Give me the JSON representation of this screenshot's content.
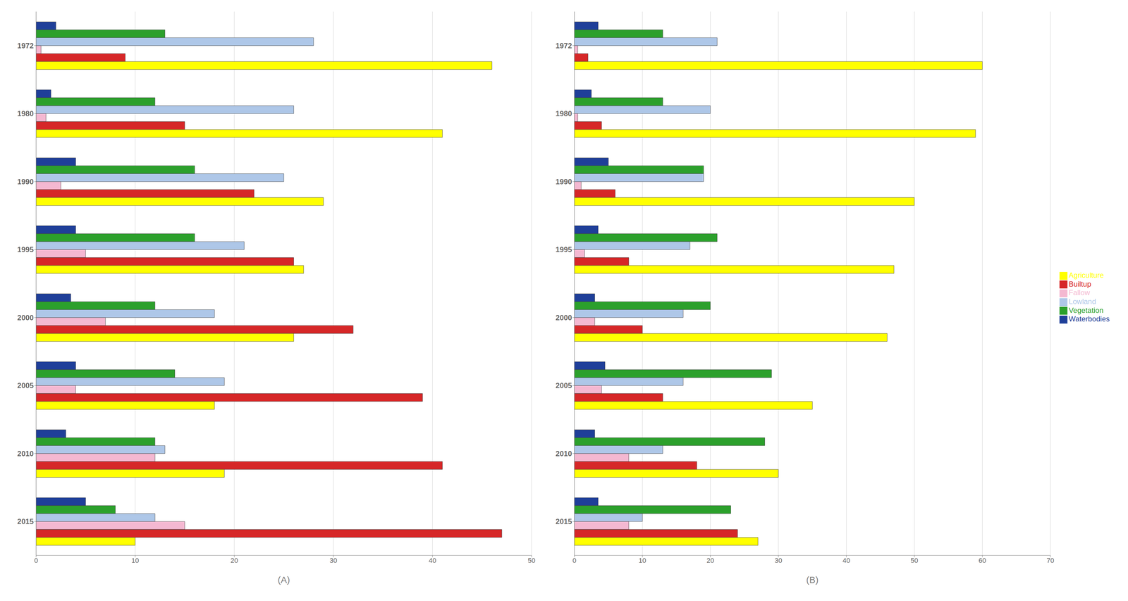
{
  "chart_data": [
    {
      "type": "bar",
      "orientation": "horizontal",
      "xlabel": "(A)",
      "categories": [
        "1972",
        "1980",
        "1990",
        "1995",
        "2000",
        "2005",
        "2010",
        "2015"
      ],
      "series": [
        {
          "name": "Waterbodies",
          "color": "#1f3f99",
          "values": [
            2,
            1.5,
            4,
            4,
            3.5,
            4,
            3,
            5
          ]
        },
        {
          "name": "Vegetation",
          "color": "#2ca02c",
          "values": [
            13,
            12,
            16,
            16,
            12,
            14,
            12,
            8
          ]
        },
        {
          "name": "Lowland",
          "color": "#aec7e8",
          "values": [
            28,
            26,
            25,
            21,
            18,
            19,
            13,
            12
          ]
        },
        {
          "name": "Fallow",
          "color": "#f4b8d1",
          "values": [
            0.5,
            1,
            2.5,
            5,
            7,
            4,
            12,
            15
          ]
        },
        {
          "name": "Builtup",
          "color": "#d62728",
          "values": [
            9,
            15,
            22,
            26,
            32,
            39,
            41,
            47
          ]
        },
        {
          "name": "Agriculture",
          "color": "#ffff00",
          "values": [
            46,
            41,
            29,
            27,
            26,
            18,
            19,
            10
          ]
        }
      ],
      "xlim": [
        0,
        50
      ],
      "xticks": [
        0,
        10,
        20,
        30,
        40,
        50
      ],
      "grid": true
    },
    {
      "type": "bar",
      "orientation": "horizontal",
      "xlabel": "(B)",
      "categories": [
        "1972",
        "1980",
        "1990",
        "1995",
        "2000",
        "2005",
        "2010",
        "2015"
      ],
      "series": [
        {
          "name": "Waterbodies",
          "color": "#1f3f99",
          "values": [
            3.5,
            2.5,
            5,
            3.5,
            3,
            4.5,
            3,
            3.5
          ]
        },
        {
          "name": "Vegetation",
          "color": "#2ca02c",
          "values": [
            13,
            13,
            19,
            21,
            20,
            29,
            28,
            23
          ]
        },
        {
          "name": "Lowland",
          "color": "#aec7e8",
          "values": [
            21,
            20,
            19,
            17,
            16,
            16,
            13,
            10
          ]
        },
        {
          "name": "Fallow",
          "color": "#f4b8d1",
          "values": [
            0.5,
            0.5,
            1,
            1.5,
            3,
            4,
            8,
            8
          ]
        },
        {
          "name": "Builtup",
          "color": "#d62728",
          "values": [
            2,
            4,
            6,
            8,
            10,
            13,
            18,
            24
          ]
        },
        {
          "name": "Agriculture",
          "color": "#ffff00",
          "values": [
            60,
            59,
            50,
            47,
            46,
            35,
            30,
            27
          ]
        }
      ],
      "xlim": [
        0,
        70
      ],
      "xticks": [
        0,
        10,
        20,
        30,
        40,
        50,
        60,
        70
      ],
      "grid": true,
      "legend": "right"
    }
  ]
}
